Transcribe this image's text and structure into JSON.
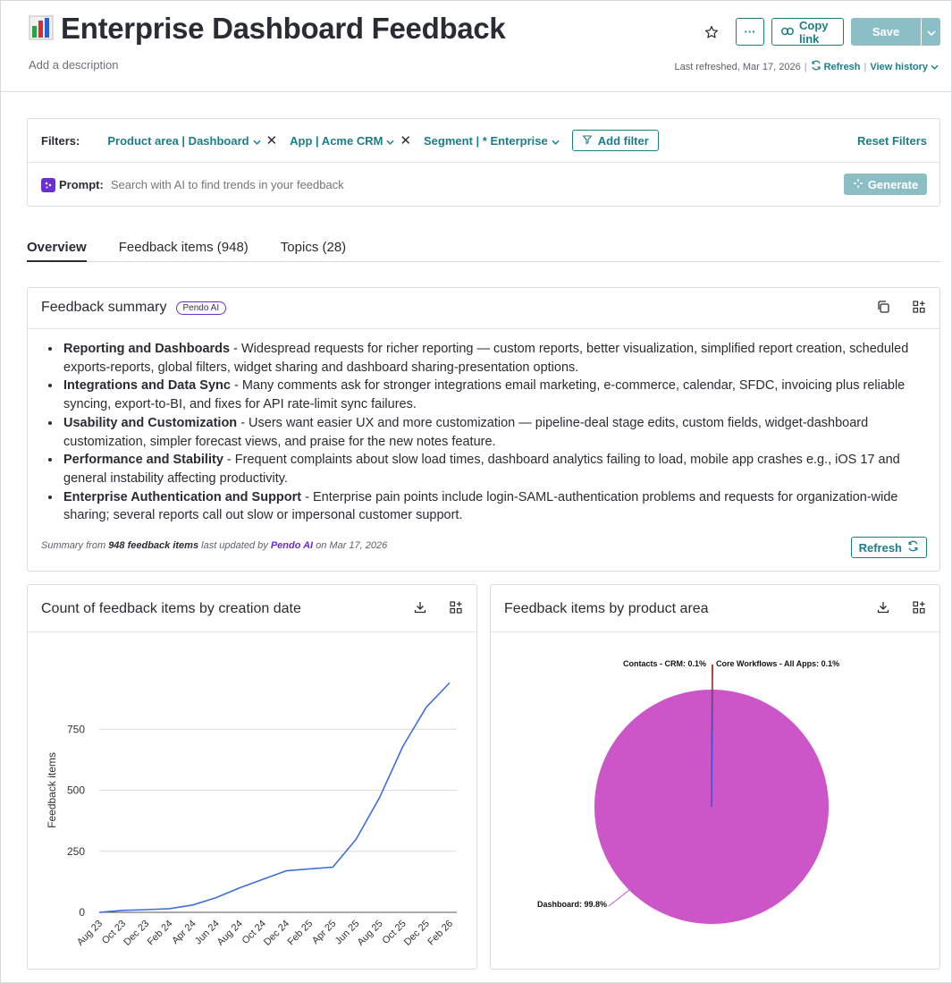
{
  "header": {
    "title": "Enterprise Dashboard Feedback",
    "description": "Add a description",
    "copy_link": "Copy link",
    "more": "···",
    "save": "Save",
    "last_refreshed": "Last refreshed, Mar 17, 2026",
    "refresh": "Refresh",
    "view_history": "View history"
  },
  "filters": {
    "label": "Filters:",
    "chips": [
      {
        "label": "Product area | Dashboard"
      },
      {
        "label": "App | Acme CRM"
      },
      {
        "label": "Segment | * Enterprise"
      }
    ],
    "add_filter": "Add filter",
    "reset": "Reset Filters",
    "prompt_label": "Prompt:",
    "prompt_placeholder": "Search with AI to find trends in your feedback",
    "generate": "Generate"
  },
  "tabs": [
    {
      "label": "Overview",
      "active": true
    },
    {
      "label": "Feedback items (948)",
      "active": false
    },
    {
      "label": "Topics (28)",
      "active": false
    }
  ],
  "summary": {
    "title": "Feedback summary",
    "badge": "Pendo AI",
    "items": [
      {
        "head": "Reporting and Dashboards",
        "text": " - Widespread requests for richer reporting — custom reports, better visualization, simplified report creation, scheduled exports-reports, global filters, widget sharing and dashboard sharing-presentation options."
      },
      {
        "head": "Integrations and Data Sync",
        "text": " - Many comments ask for stronger integrations email marketing, e-commerce, calendar, SFDC, invoicing plus reliable syncing, export-to-BI, and fixes for API rate-limit sync failures."
      },
      {
        "head": "Usability and Customization",
        "text": " - Users want easier UX and more customization — pipeline-deal stage edits, custom fields, widget-dashboard customization, simpler forecast views, and praise for the new notes feature."
      },
      {
        "head": "Performance and Stability",
        "text": " - Frequent complaints about slow load times, dashboard analytics failing to load, mobile app crashes e.g., iOS 17 and general instability affecting productivity."
      },
      {
        "head": "Enterprise Authentication and Support",
        "text": " - Enterprise pain points include login-SAML-authentication problems and requests for organization-wide sharing; several reports call out slow or impersonal customer support."
      }
    ],
    "footer_prefix": "Summary from ",
    "footer_count": "948 feedback items",
    "footer_mid": " last updated by ",
    "footer_ai": "Pendo AI",
    "footer_date": " on Mar 17, 2026",
    "refresh": "Refresh"
  },
  "colors": {
    "accent": "#1a7e8a",
    "ai_purple": "#6b2fd1",
    "line": "#3f6fd8",
    "pie_main": "#cc55c8"
  },
  "chart_data": [
    {
      "type": "line",
      "title": "Count of feedback items by creation date",
      "ylabel": "Feedback items",
      "xlabel": "",
      "ylim": [
        0,
        1000
      ],
      "yticks": [
        0,
        250,
        500,
        750
      ],
      "grid": true,
      "x": [
        "Aug 23",
        "Oct 23",
        "Dec 23",
        "Feb 24",
        "Apr 24",
        "Jun 24",
        "Aug 24",
        "Oct 24",
        "Dec 24",
        "Feb 25",
        "Apr 25",
        "Jun 25",
        "Aug 25",
        "Oct 25",
        "Dec 25",
        "Feb 26"
      ],
      "series": [
        {
          "values": [
            0,
            8,
            11,
            15,
            30,
            60,
            100,
            135,
            170,
            178,
            185,
            300,
            470,
            680,
            840,
            940
          ]
        }
      ]
    },
    {
      "type": "pie",
      "title": "Feedback items by product area",
      "slices": [
        {
          "label": "Dashboard",
          "value": 99.8,
          "color": "#cc55c8",
          "display": "Dashboard: 99.8%"
        },
        {
          "label": "Contacts - CRM",
          "value": 0.1,
          "color": "#c0392b",
          "display": "Contacts - CRM: 0.1%"
        },
        {
          "label": "Core Workflows - All Apps",
          "value": 0.1,
          "color": "#3f4fd8",
          "display": "Core Workflows - All Apps: 0.1%"
        }
      ]
    }
  ]
}
